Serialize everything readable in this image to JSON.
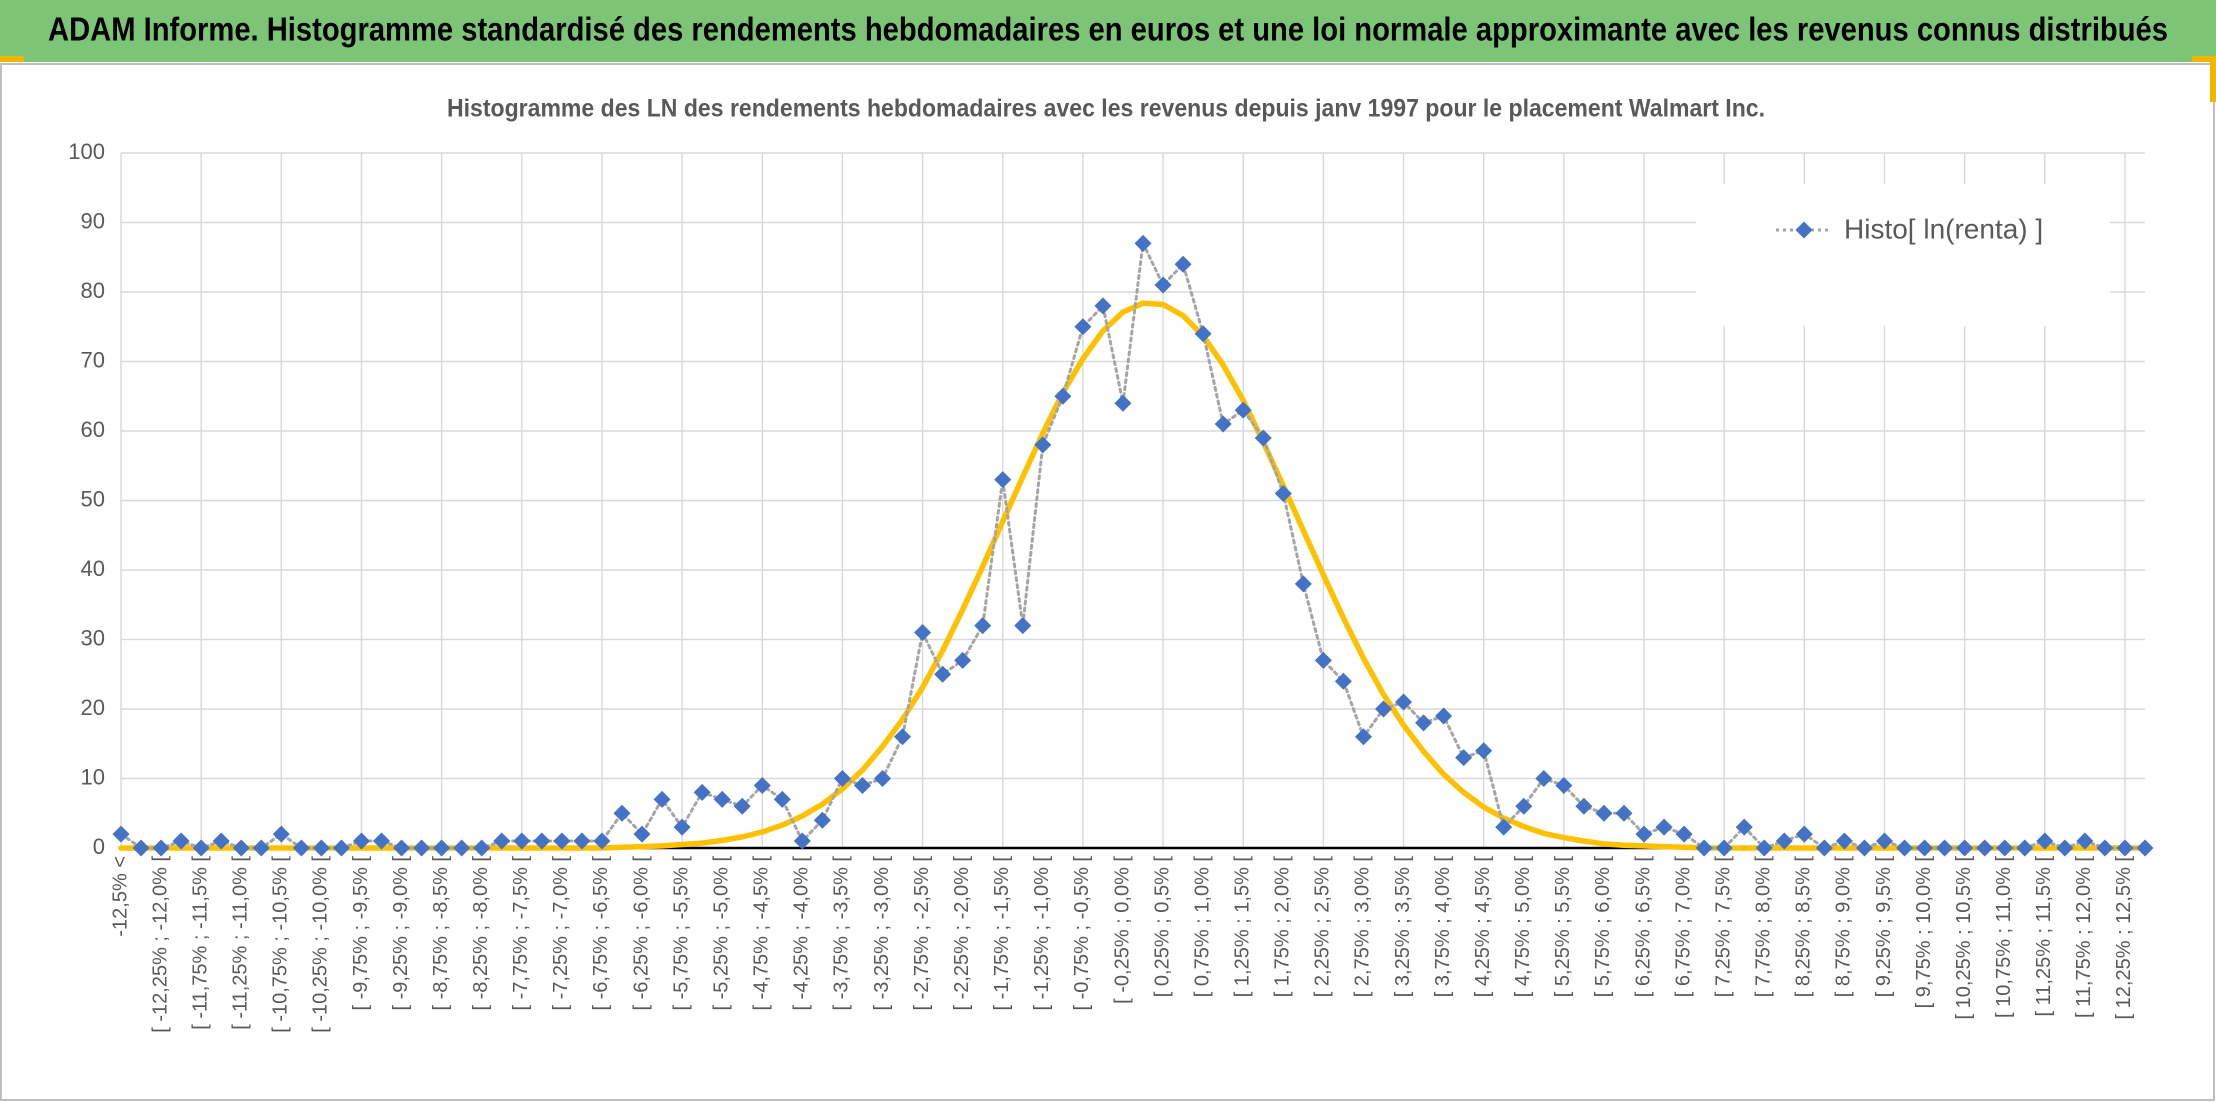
{
  "header": {
    "title": "ADAM Informe. Histogramme standardisé des rendements hebdomadaires en euros et une loi normale approximante avec les revenus connus distribués"
  },
  "chart_data": {
    "type": "line",
    "title": "Histogramme des LN des rendements hebdomadaires avec les revenus depuis janv 1997 pour le placement Walmart Inc.",
    "categories": [
      "-12,5% <",
      null,
      "[ -12,25% ; -12,0% [",
      null,
      "[ -11,75% ; -11,5% [",
      null,
      "[ -11,25% ; -11,0% [",
      null,
      "[ -10,75% ; -10,5% [",
      null,
      "[ -10,25% ; -10,0% [",
      null,
      "[ -9,75% ; -9,5% [",
      null,
      "[ -9,25% ; -9,0% [",
      null,
      "[ -8,75% ; -8,5% [",
      null,
      "[ -8,25% ; -8,0% [",
      null,
      "[ -7,75% ; -7,5% [",
      null,
      "[ -7,25% ; -7,0% [",
      null,
      "[ -6,75% ; -6,5% [",
      null,
      "[ -6,25% ; -6,0% [",
      null,
      "[ -5,75% ; -5,5% [",
      null,
      "[ -5,25% ; -5,0% [",
      null,
      "[ -4,75% ; -4,5% [",
      null,
      "[ -4,25% ; -4,0% [",
      null,
      "[ -3,75% ; -3,5% [",
      null,
      "[ -3,25% ; -3,0% [",
      null,
      "[ -2,75% ; -2,5% [",
      null,
      "[ -2,25% ; -2,0% [",
      null,
      "[ -1,75% ; -1,5% [",
      null,
      "[ -1,25% ; -1,0% [",
      null,
      "[ -0,75% ; -0,5% [",
      null,
      "[ -0,25% ; 0,0% [",
      null,
      "[ 0,25% ; 0,5% [",
      null,
      "[ 0,75% ; 1,0% [",
      null,
      "[ 1,25% ; 1,5% [",
      null,
      "[ 1,75% ; 2,0% [",
      null,
      "[ 2,25% ; 2,5% [",
      null,
      "[ 2,75% ; 3,0% [",
      null,
      "[ 3,25% ; 3,5% [",
      null,
      "[ 3,75% ; 4,0% [",
      null,
      "[ 4,25% ; 4,5% [",
      null,
      "[ 4,75% ; 5,0% [",
      null,
      "[ 5,25% ; 5,5% [",
      null,
      "[ 5,75% ; 6,0% [",
      null,
      "[ 6,25% ; 6,5% [",
      null,
      "[ 6,75% ; 7,0% [",
      null,
      "[ 7,25% ; 7,5% [",
      null,
      "[ 7,75% ; 8,0% [",
      null,
      "[ 8,25% ; 8,5% [",
      null,
      "[ 8,75% ; 9,0% [",
      null,
      "[ 9,25% ; 9,5% [",
      null,
      "[ 9,75% ; 10,0% [",
      null,
      "[ 10,25% ; 10,5% [",
      null,
      "[ 10,75% ; 11,0% [",
      null,
      "[ 11,25% ; 11,5% [",
      null,
      "[ 11,75% ; 12,0% [",
      null,
      "[ 12,25% ; 12,5% [",
      null
    ],
    "series": [
      {
        "name": "Histo[ ln(renta) ]",
        "color": "#4472c4",
        "marker": "diamond",
        "line_color": "#a5a5a5",
        "line_style": "dotted",
        "values": [
          2,
          0,
          0,
          1,
          0,
          1,
          0,
          0,
          2,
          0,
          0,
          0,
          1,
          1,
          0,
          0,
          0,
          0,
          0,
          1,
          1,
          1,
          1,
          1,
          1,
          5,
          2,
          7,
          3,
          8,
          7,
          6,
          9,
          7,
          1,
          4,
          10,
          9,
          10,
          16,
          31,
          25,
          27,
          32,
          53,
          32,
          58,
          65,
          75,
          78,
          64,
          87,
          81,
          84,
          74,
          61,
          63,
          59,
          51,
          38,
          27,
          24,
          16,
          20,
          21,
          18,
          19,
          13,
          14,
          3,
          6,
          10,
          9,
          6,
          5,
          5,
          2,
          3,
          2,
          0,
          0,
          3,
          0,
          1,
          2,
          0,
          1,
          0,
          1,
          0,
          0,
          0,
          0,
          0,
          0,
          0,
          1,
          0,
          1,
          0,
          0,
          0
        ]
      },
      {
        "color": "#ffc000",
        "marker": "none",
        "line_style": "solid",
        "values": [
          0,
          0,
          0,
          0,
          0,
          0,
          0,
          0,
          0,
          0,
          0,
          0,
          0,
          0,
          0,
          0,
          0,
          0,
          0,
          0,
          0,
          0,
          0,
          0,
          0,
          0.1,
          0.2,
          0.3,
          0.5,
          0.7,
          1.1,
          1.6,
          2.3,
          3.3,
          4.6,
          6.3,
          8.5,
          11.2,
          14.6,
          18.5,
          23.1,
          28.4,
          34.3,
          40.5,
          47.0,
          53.4,
          59.7,
          65.5,
          70.4,
          74.4,
          77.1,
          78.4,
          78.2,
          76.6,
          73.7,
          69.5,
          64.4,
          58.4,
          52.1,
          45.7,
          39.3,
          33.1,
          27.3,
          22.1,
          17.7,
          13.9,
          10.6,
          8.0,
          5.9,
          4.3,
          3.1,
          2.1,
          1.5,
          1.0,
          0.6,
          0.4,
          0.3,
          0.2,
          0.1,
          0,
          0,
          0,
          0,
          0,
          0,
          0,
          0,
          0,
          0,
          0,
          0,
          0,
          0,
          0,
          0,
          0,
          0,
          0,
          0,
          0,
          0,
          0
        ]
      }
    ],
    "ylim": [
      0,
      100
    ],
    "yticks": [
      0,
      10,
      20,
      30,
      40,
      50,
      60,
      70,
      80,
      90,
      100
    ],
    "grid": true,
    "legend": "top-right"
  }
}
